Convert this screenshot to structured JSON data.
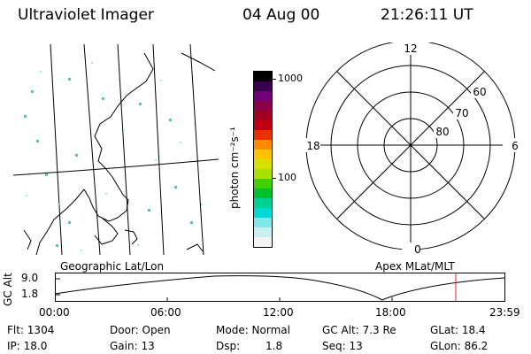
{
  "header": {
    "title": "Ultraviolet Imager",
    "date": "04 Aug 00",
    "time": "21:26:11 UT"
  },
  "colorbar": {
    "unit_label": "photon cm⁻²s⁻¹",
    "tick_top": "1000",
    "tick_mid": "100",
    "colors": [
      "#000000",
      "#3a0050",
      "#70007a",
      "#8a004a",
      "#a00020",
      "#c00010",
      "#e83000",
      "#ff8c00",
      "#ffc400",
      "#d8e000",
      "#a8e000",
      "#40d000",
      "#00c030",
      "#00d090",
      "#00d8d8",
      "#80e8e8",
      "#c8f0f0",
      "#f4f4f4"
    ]
  },
  "polar_plot": {
    "mlt_12": "12",
    "mlt_18": "18",
    "mlt_6": "6",
    "mlt_0": "0",
    "lat_60": "60",
    "lat_70": "70",
    "lat_80": "80"
  },
  "panel_labels": {
    "left": "Geographic Lat/Lon",
    "right": "Apex MLat/MLT"
  },
  "altitude_plot": {
    "ylabel": "GC Alt",
    "y_ticks": [
      "9.0",
      "1.8"
    ],
    "x_ticks": [
      "00:00",
      "06:00",
      "12:00",
      "18:00",
      "23:59"
    ],
    "current_marker_color": "#e02020"
  },
  "info": {
    "flt": "Flt: 1304",
    "door": "Door: Open",
    "mode": "Mode: Normal",
    "gc_alt": "GC Alt: 7.3 Re",
    "glat": "GLat: 18.4",
    "ip": "IP: 18.0",
    "gain": "Gain: 13",
    "dsp_label": "Dsp:",
    "dsp_value": "1.8",
    "seq": "Seq: 13",
    "glon": "GLon: 86.2"
  }
}
